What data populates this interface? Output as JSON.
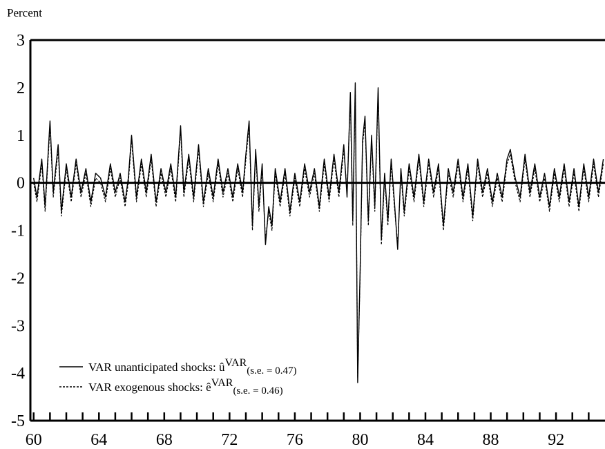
{
  "chart_data": {
    "type": "line",
    "title": "",
    "xlabel": "",
    "ylabel": "Percent",
    "xlim": [
      1959.8,
      1995.0
    ],
    "ylim": [
      -5,
      3
    ],
    "x_ticks": [
      60,
      64,
      68,
      72,
      76,
      80,
      84,
      88,
      92
    ],
    "y_ticks": [
      3,
      2,
      1,
      0,
      -1,
      -2,
      -3,
      -4,
      -5
    ],
    "grid": false,
    "zero_line": true,
    "legend_placement": "bottom-left",
    "legend": [
      {
        "prefix": "VAR unanticipated shocks: ",
        "symbol": "û",
        "sup": "VAR",
        "sub": "(s.e. = 0.47)",
        "style": "solid"
      },
      {
        "prefix": "VAR exogenous shocks: ",
        "symbol": "ê",
        "sup": "VAR",
        "sub": "(s.e. = 0.46)",
        "style": "dashed"
      }
    ],
    "series": [
      {
        "style": "solid",
        "x": [
          1960.0,
          1960.2,
          1960.5,
          1960.7,
          1961.0,
          1961.2,
          1961.5,
          1961.7,
          1962.0,
          1962.3,
          1962.6,
          1962.9,
          1963.2,
          1963.5,
          1963.8,
          1964.1,
          1964.4,
          1964.7,
          1965.0,
          1965.3,
          1965.6,
          1965.8,
          1966.0,
          1966.3,
          1966.6,
          1966.9,
          1967.2,
          1967.5,
          1967.8,
          1968.1,
          1968.4,
          1968.7,
          1969.0,
          1969.2,
          1969.5,
          1969.8,
          1970.1,
          1970.4,
          1970.7,
          1971.0,
          1971.3,
          1971.6,
          1971.9,
          1972.2,
          1972.5,
          1972.8,
          1973.0,
          1973.2,
          1973.4,
          1973.6,
          1973.8,
          1974.0,
          1974.2,
          1974.4,
          1974.6,
          1974.8,
          1975.1,
          1975.4,
          1975.7,
          1976.0,
          1976.3,
          1976.6,
          1976.9,
          1977.2,
          1977.5,
          1977.8,
          1978.1,
          1978.4,
          1978.7,
          1979.0,
          1979.2,
          1979.4,
          1979.55,
          1979.7,
          1979.85,
          1980.0,
          1980.15,
          1980.3,
          1980.5,
          1980.7,
          1980.9,
          1981.1,
          1981.3,
          1981.5,
          1981.7,
          1981.9,
          1982.1,
          1982.3,
          1982.5,
          1982.7,
          1983.0,
          1983.3,
          1983.6,
          1983.9,
          1984.2,
          1984.5,
          1984.8,
          1985.1,
          1985.4,
          1985.7,
          1986.0,
          1986.3,
          1986.6,
          1986.9,
          1987.2,
          1987.5,
          1987.8,
          1988.1,
          1988.4,
          1988.7,
          1989.0,
          1989.2,
          1989.5,
          1989.8,
          1990.1,
          1990.4,
          1990.7,
          1991.0,
          1991.3,
          1991.6,
          1991.9,
          1992.2,
          1992.5,
          1992.8,
          1993.1,
          1993.4,
          1993.7,
          1994.0,
          1994.3,
          1994.6,
          1994.9
        ],
        "y": [
          0.1,
          -0.3,
          0.5,
          -0.5,
          1.3,
          -0.2,
          0.8,
          -0.6,
          0.4,
          -0.3,
          0.5,
          -0.2,
          0.3,
          -0.4,
          0.2,
          0.1,
          -0.3,
          0.4,
          -0.2,
          0.2,
          -0.4,
          0.1,
          1.0,
          -0.3,
          0.5,
          -0.2,
          0.6,
          -0.4,
          0.3,
          -0.2,
          0.4,
          -0.3,
          1.2,
          -0.2,
          0.6,
          -0.3,
          0.8,
          -0.4,
          0.3,
          -0.3,
          0.5,
          -0.2,
          0.3,
          -0.3,
          0.4,
          -0.2,
          0.6,
          1.3,
          -0.9,
          0.7,
          -0.5,
          0.4,
          -1.3,
          -0.5,
          -0.9,
          0.3,
          -0.4,
          0.3,
          -0.6,
          0.2,
          -0.4,
          0.4,
          -0.2,
          0.3,
          -0.5,
          0.5,
          -0.3,
          0.6,
          -0.2,
          0.8,
          -0.3,
          1.9,
          -0.8,
          2.1,
          -4.2,
          -1.8,
          0.9,
          1.4,
          -0.8,
          1.0,
          -0.5,
          2.0,
          -1.2,
          0.2,
          -0.8,
          0.5,
          -0.4,
          -1.4,
          0.3,
          -0.6,
          0.4,
          -0.3,
          0.6,
          -0.4,
          0.5,
          -0.2,
          0.4,
          -0.9,
          0.3,
          -0.2,
          0.5,
          -0.3,
          0.4,
          -0.7,
          0.5,
          -0.2,
          0.3,
          -0.4,
          0.2,
          -0.3,
          0.5,
          0.7,
          0.1,
          -0.3,
          0.6,
          -0.2,
          0.4,
          -0.3,
          0.2,
          -0.5,
          0.3,
          -0.3,
          0.4,
          -0.4,
          0.3,
          -0.5,
          0.4,
          -0.3,
          0.5,
          -0.2,
          0.5
        ]
      },
      {
        "style": "dashed",
        "x": [
          1960.0,
          1960.2,
          1960.5,
          1960.7,
          1961.0,
          1961.2,
          1961.5,
          1961.7,
          1962.0,
          1962.3,
          1962.6,
          1962.9,
          1963.2,
          1963.5,
          1963.8,
          1964.1,
          1964.4,
          1964.7,
          1965.0,
          1965.3,
          1965.6,
          1965.8,
          1966.0,
          1966.3,
          1966.6,
          1966.9,
          1967.2,
          1967.5,
          1967.8,
          1968.1,
          1968.4,
          1968.7,
          1969.0,
          1969.2,
          1969.5,
          1969.8,
          1970.1,
          1970.4,
          1970.7,
          1971.0,
          1971.3,
          1971.6,
          1971.9,
          1972.2,
          1972.5,
          1972.8,
          1973.0,
          1973.2,
          1973.4,
          1973.6,
          1973.8,
          1974.0,
          1974.2,
          1974.4,
          1974.6,
          1974.8,
          1975.1,
          1975.4,
          1975.7,
          1976.0,
          1976.3,
          1976.6,
          1976.9,
          1977.2,
          1977.5,
          1977.8,
          1978.1,
          1978.4,
          1978.7,
          1979.0,
          1979.2,
          1979.4,
          1979.55,
          1979.7,
          1979.85,
          1980.0,
          1980.15,
          1980.3,
          1980.5,
          1980.7,
          1980.9,
          1981.1,
          1981.3,
          1981.5,
          1981.7,
          1981.9,
          1982.1,
          1982.3,
          1982.5,
          1982.7,
          1983.0,
          1983.3,
          1983.6,
          1983.9,
          1984.2,
          1984.5,
          1984.8,
          1985.1,
          1985.4,
          1985.7,
          1986.0,
          1986.3,
          1986.6,
          1986.9,
          1987.2,
          1987.5,
          1987.8,
          1988.1,
          1988.4,
          1988.7,
          1989.0,
          1989.2,
          1989.5,
          1989.8,
          1990.1,
          1990.4,
          1990.7,
          1991.0,
          1991.3,
          1991.6,
          1991.9,
          1992.2,
          1992.5,
          1992.8,
          1993.1,
          1993.4,
          1993.7,
          1994.0,
          1994.3,
          1994.6,
          1994.9
        ],
        "y": [
          0.0,
          -0.4,
          0.4,
          -0.6,
          1.2,
          -0.3,
          0.7,
          -0.7,
          0.3,
          -0.4,
          0.4,
          -0.3,
          0.2,
          -0.5,
          0.1,
          0.0,
          -0.4,
          0.3,
          -0.3,
          0.1,
          -0.5,
          0.0,
          0.9,
          -0.4,
          0.4,
          -0.3,
          0.5,
          -0.5,
          0.2,
          -0.3,
          0.3,
          -0.4,
          1.1,
          -0.3,
          0.5,
          -0.4,
          0.7,
          -0.5,
          0.2,
          -0.4,
          0.4,
          -0.3,
          0.2,
          -0.4,
          0.3,
          -0.3,
          0.5,
          1.2,
          -1.0,
          0.6,
          -0.6,
          0.3,
          -1.2,
          -0.6,
          -1.0,
          0.2,
          -0.5,
          0.2,
          -0.7,
          0.1,
          -0.5,
          0.3,
          -0.3,
          0.2,
          -0.6,
          0.4,
          -0.4,
          0.5,
          -0.3,
          0.7,
          -0.2,
          1.8,
          -0.9,
          2.0,
          -4.1,
          -1.9,
          0.8,
          1.3,
          -0.9,
          0.9,
          -0.6,
          1.9,
          -1.3,
          0.1,
          -0.9,
          0.4,
          -0.5,
          -1.3,
          0.2,
          -0.7,
          0.3,
          -0.4,
          0.5,
          -0.5,
          0.4,
          -0.3,
          0.3,
          -1.0,
          0.2,
          -0.3,
          0.4,
          -0.4,
          0.3,
          -0.8,
          0.4,
          -0.3,
          0.2,
          -0.5,
          0.1,
          -0.4,
          0.4,
          0.6,
          0.0,
          -0.4,
          0.5,
          -0.3,
          0.3,
          -0.4,
          0.1,
          -0.6,
          0.2,
          -0.4,
          0.3,
          -0.5,
          0.2,
          -0.6,
          0.3,
          -0.4,
          0.4,
          -0.3,
          0.4
        ]
      }
    ]
  }
}
